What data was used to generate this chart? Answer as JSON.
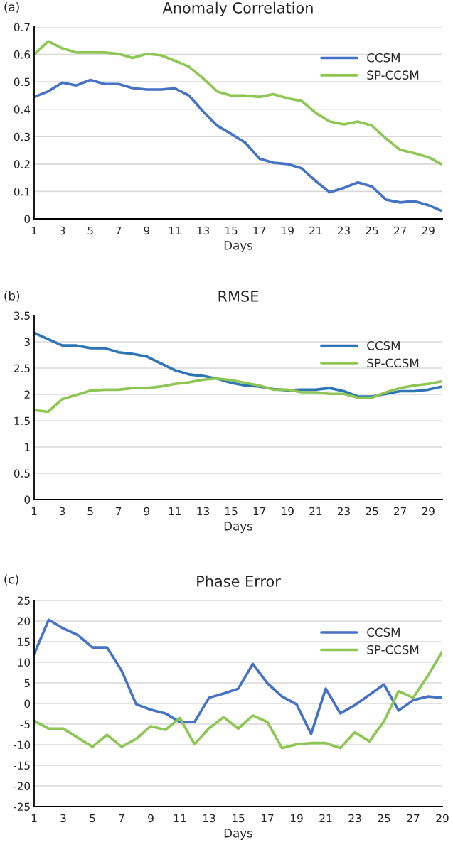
{
  "chart_data": [
    {
      "type": "line",
      "title": "Anomaly Correlation",
      "xlabel": "Days",
      "annotations": [
        "(a)"
      ],
      "categories": [
        "1",
        null,
        "3",
        null,
        "5",
        null,
        "7",
        null,
        "9",
        null,
        "11",
        null,
        "13",
        null,
        "15",
        null,
        "17",
        null,
        "19",
        null,
        "21",
        null,
        "23",
        null,
        "25",
        null,
        "27",
        null,
        "29",
        null
      ],
      "series": [
        {
          "name": "CCSM",
          "color": "#4472c4",
          "values": [
            0.445,
            0.465,
            0.497,
            0.487,
            0.507,
            0.492,
            0.492,
            0.477,
            0.472,
            0.472,
            0.476,
            0.45,
            0.392,
            0.34,
            0.31,
            0.278,
            0.22,
            0.205,
            0.2,
            0.185,
            0.138,
            0.097,
            0.113,
            0.133,
            0.118,
            0.07,
            0.06,
            0.065,
            0.05,
            0.028
          ]
        },
        {
          "name": "SP-CCSM",
          "color": "#8dc653",
          "values": [
            0.6,
            0.648,
            0.622,
            0.607,
            0.607,
            0.607,
            0.602,
            0.587,
            0.602,
            0.597,
            0.577,
            0.555,
            0.513,
            0.465,
            0.45,
            0.45,
            0.445,
            0.455,
            0.44,
            0.43,
            0.387,
            0.355,
            0.345,
            0.355,
            0.34,
            0.293,
            0.252,
            0.24,
            0.225,
            0.198
          ]
        }
      ],
      "ylim": [
        0,
        0.7
      ],
      "yticks": [
        0,
        0.1,
        0.2,
        0.3,
        0.4,
        0.5,
        0.6,
        0.7
      ],
      "grid": "y",
      "legend": "top right",
      "marker": "none",
      "line_style": "solid"
    },
    {
      "type": "line",
      "title": "RMSE",
      "xlabel": "Days",
      "annotations": [
        "(b)"
      ],
      "categories": [
        "1",
        null,
        "3",
        null,
        "5",
        null,
        "7",
        null,
        "9",
        null,
        "11",
        null,
        "13",
        null,
        "15",
        null,
        "17",
        null,
        "19",
        null,
        "21",
        null,
        "23",
        null,
        "25",
        null,
        "27",
        null,
        "29",
        null
      ],
      "series": [
        {
          "name": "CCSM",
          "color": "#2e75b6",
          "values": [
            3.17,
            3.05,
            2.93,
            2.93,
            2.88,
            2.88,
            2.8,
            2.77,
            2.72,
            2.59,
            2.46,
            2.38,
            2.35,
            2.3,
            2.22,
            2.17,
            2.15,
            2.1,
            2.08,
            2.09,
            2.09,
            2.12,
            2.06,
            1.96,
            1.96,
            2.01,
            2.06,
            2.06,
            2.09,
            2.15
          ]
        },
        {
          "name": "SP-CCSM",
          "color": "#8dc653",
          "values": [
            1.7,
            1.67,
            1.91,
            1.99,
            2.07,
            2.09,
            2.09,
            2.12,
            2.12,
            2.15,
            2.2,
            2.23,
            2.28,
            2.3,
            2.27,
            2.22,
            2.17,
            2.09,
            2.09,
            2.04,
            2.04,
            2.01,
            2.01,
            1.94,
            1.94,
            2.04,
            2.12,
            2.17,
            2.2,
            2.25
          ]
        }
      ],
      "ylim": [
        0,
        3.5
      ],
      "yticks": [
        0,
        0.5,
        1,
        1.5,
        2,
        2.5,
        3,
        3.5
      ],
      "grid": "y",
      "legend": "top right",
      "marker": "none",
      "line_style": "solid"
    },
    {
      "type": "line",
      "title": "Phase Error",
      "xlabel": "Days",
      "annotations": [
        "(c)"
      ],
      "categories": [
        "1",
        null,
        "3",
        null,
        "5",
        null,
        "7",
        null,
        "9",
        null,
        "11",
        null,
        "13",
        null,
        "15",
        null,
        "17",
        null,
        "19",
        null,
        "21",
        null,
        "23",
        null,
        "25",
        null,
        "27",
        null,
        "29"
      ],
      "series": [
        {
          "name": "CCSM",
          "color": "#4472c4",
          "values": [
            12,
            20.3,
            18.2,
            16.6,
            13.6,
            13.6,
            8,
            -0.2,
            -1.5,
            -2.4,
            -4.5,
            -4.5,
            1.4,
            2.4,
            3.6,
            9.6,
            4.9,
            1.7,
            -0.2,
            -7.4,
            3.6,
            -2.4,
            -0.4,
            2.1,
            4.6,
            -1.7,
            0.8,
            1.7,
            1.4
          ]
        },
        {
          "name": "SP-CCSM",
          "color": "#8dc653",
          "values": [
            -4.2,
            -6.1,
            -6.1,
            -8.3,
            -10.5,
            -7.6,
            -10.5,
            -8.6,
            -5.5,
            -6.4,
            -3.5,
            -9.9,
            -6,
            -3.3,
            -6.1,
            -2.9,
            -4.5,
            -10.8,
            -9.9,
            -9.6,
            -9.6,
            -10.8,
            -7,
            -9.2,
            -4.3,
            3,
            1.4,
            6.7,
            12.6
          ]
        }
      ],
      "ylim": [
        -25,
        25
      ],
      "yticks": [
        -25,
        -20,
        -15,
        -10,
        -5,
        0,
        5,
        10,
        15,
        20,
        25
      ],
      "grid": "y",
      "legend": "top right",
      "marker": "none",
      "line_style": "solid"
    }
  ]
}
